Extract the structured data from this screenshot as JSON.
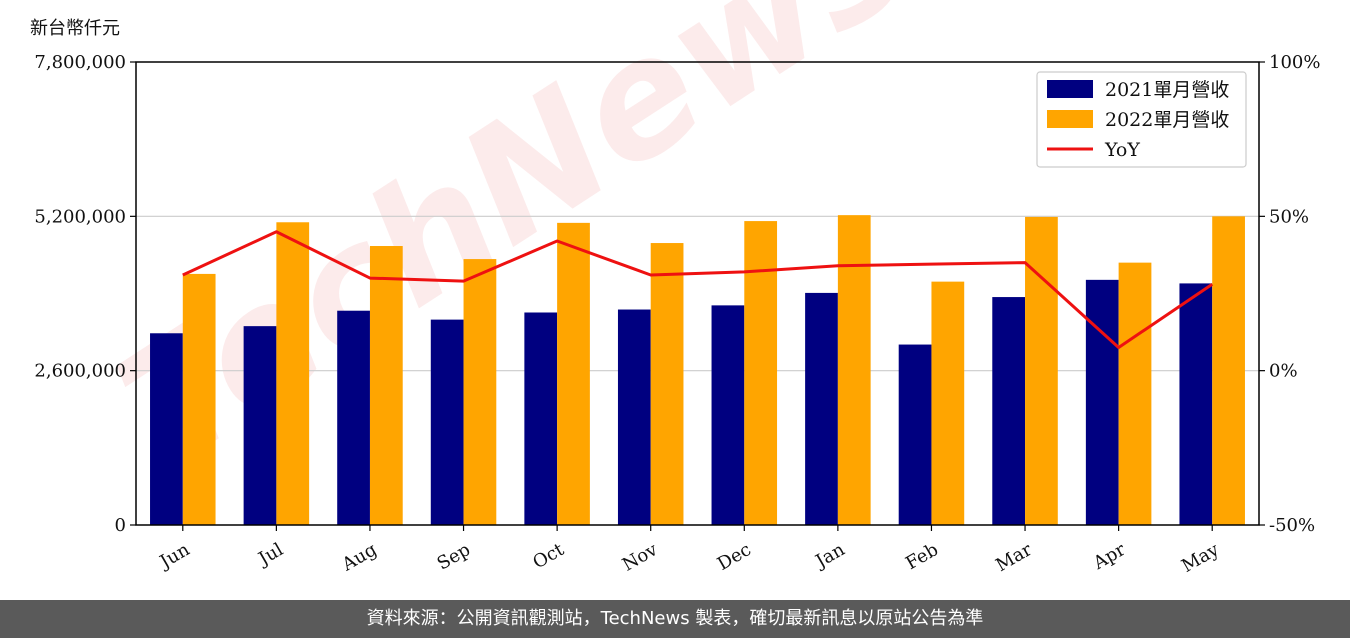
{
  "unit_label": "新台幣仟元",
  "footer_text": "資料來源：公開資訊觀測站，TechNews 製表，確切最新訊息以原站公告為準",
  "watermark_text": "TechNews",
  "colors": {
    "series_2021": "#000080",
    "series_2022": "#FFA500",
    "yoy": "#EE1111",
    "grid": "#cccccc",
    "footer_bg": "#5a5a5a"
  },
  "chart_data": {
    "type": "bar",
    "categories": [
      "Jun",
      "Jul",
      "Aug",
      "Sep",
      "Oct",
      "Nov",
      "Dec",
      "Jan",
      "Feb",
      "Mar",
      "Apr",
      "May"
    ],
    "series": [
      {
        "name": "2021單月營收",
        "type": "bar",
        "axis": "left",
        "values": [
          3230000,
          3350000,
          3610000,
          3460000,
          3580000,
          3630000,
          3700000,
          3910000,
          3040000,
          3840000,
          4130000,
          4070000
        ]
      },
      {
        "name": "2022單月營收",
        "type": "bar",
        "axis": "left",
        "values": [
          4230000,
          5100000,
          4700000,
          4480000,
          5090000,
          4750000,
          5120000,
          5220000,
          4100000,
          5190000,
          4420000,
          5200000
        ]
      },
      {
        "name": "YoY",
        "type": "line",
        "axis": "right",
        "values": [
          31,
          45,
          30,
          29,
          42,
          31,
          32,
          34,
          34.5,
          35,
          7.5,
          28
        ]
      }
    ],
    "y_left": {
      "lim": [
        0,
        7800000
      ],
      "ticks": [
        "0",
        "2,600,000",
        "5,200,000",
        "7,800,000"
      ],
      "tick_values": [
        0,
        2600000,
        5200000,
        7800000
      ]
    },
    "y_right": {
      "lim": [
        -50,
        100
      ],
      "ticks": [
        "-50%",
        "0%",
        "50%",
        "100%"
      ],
      "tick_values": [
        -50,
        0,
        50,
        100
      ]
    },
    "grid": true,
    "legend": "top-right"
  }
}
